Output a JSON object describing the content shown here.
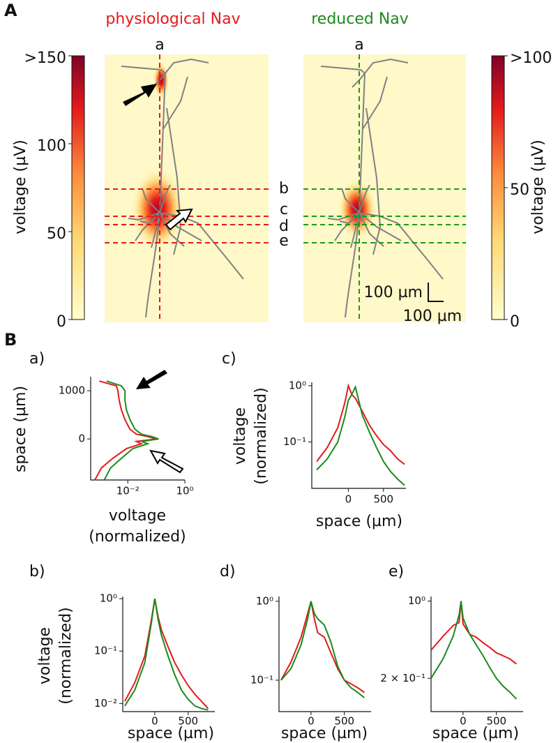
{
  "panel_labels": [
    "A",
    "B"
  ],
  "chart_data": [
    {
      "type": "heatmap",
      "title": "physiological Nav",
      "title_color": "#e31a1c",
      "line_color": "#e31a1c",
      "colorbar_label": "voltage (µV)",
      "clim": [
        0,
        150
      ],
      "cticks": [
        0,
        50,
        100,
        {
          "value": 150,
          "label": ">150"
        }
      ],
      "cut_labels": [
        "a",
        "b",
        "c",
        "d",
        "e"
      ]
    },
    {
      "type": "heatmap",
      "title": "reduced Nav",
      "title_color": "#1b8a1b",
      "line_color": "#1b9a1b",
      "colorbar_label": "voltage (µV)",
      "clim": [
        0,
        100
      ],
      "cticks": [
        0,
        50,
        {
          "value": 100,
          "label": ">100"
        }
      ],
      "cut_labels": [
        "a"
      ],
      "scale_bar": [
        "100 µm",
        "100 µm"
      ]
    },
    {
      "type": "line",
      "title": "a)",
      "xlabel": [
        "voltage",
        "(normalized)"
      ],
      "ylabel": "space (µm)",
      "xscale": "log",
      "xlim": [
        0.0005,
        1
      ],
      "xticks": [
        {
          "value": 0.01,
          "label": "10⁻²"
        },
        {
          "value": 1,
          "label": "10⁰"
        }
      ],
      "ylim": [
        -850,
        1290
      ],
      "yticks": [
        0,
        1000
      ],
      "y": [
        -850,
        -600,
        -400,
        -200,
        -100,
        -50,
        0,
        50,
        100,
        200,
        400,
        600,
        800,
        1000,
        1100,
        1200
      ],
      "series": [
        {
          "name": "physiological Nav",
          "color": "#e31a1c",
          "values": [
            0.0007,
            0.0012,
            0.003,
            0.009,
            0.03,
            0.02,
            0.1,
            0.05,
            0.02,
            0.012,
            0.008,
            0.006,
            0.005,
            0.0045,
            0.004,
            0.001
          ]
        },
        {
          "name": "reduced Nav",
          "color": "#1b8a1b",
          "values": [
            0.0015,
            0.0025,
            0.006,
            0.015,
            0.05,
            0.03,
            0.12,
            0.07,
            0.03,
            0.018,
            0.012,
            0.009,
            0.008,
            0.008,
            0.006,
            0.0018
          ]
        }
      ]
    },
    {
      "type": "line",
      "title": "c)",
      "xlabel": "space (µm)",
      "ylabel": [
        "voltage",
        "(normalized)"
      ],
      "yscale": "log",
      "xlim": [
        -520,
        820
      ],
      "xticks": [
        0,
        500
      ],
      "ylim": [
        0.015,
        1.15
      ],
      "yticks": [
        {
          "value": 0.1,
          "label": "10⁻¹"
        },
        {
          "value": 1,
          "label": "10⁰"
        }
      ],
      "x": [
        -450,
        -300,
        -150,
        -50,
        0,
        50,
        100,
        200,
        300,
        400,
        500,
        600,
        700,
        800
      ],
      "series": [
        {
          "name": "physiological Nav",
          "color": "#e31a1c",
          "values": [
            0.045,
            0.08,
            0.18,
            0.5,
            1.0,
            0.7,
            0.6,
            0.35,
            0.2,
            0.13,
            0.09,
            0.07,
            0.05,
            0.04
          ]
        },
        {
          "name": "reduced Nav",
          "color": "#1b8a1b",
          "values": [
            0.032,
            0.05,
            0.1,
            0.28,
            0.55,
            0.7,
            0.95,
            0.3,
            0.15,
            0.08,
            0.045,
            0.03,
            0.022,
            0.017
          ]
        }
      ]
    },
    {
      "type": "line",
      "title": "b)",
      "xlabel": "space (µm)",
      "ylabel": [
        "voltage",
        "(normalized)"
      ],
      "yscale": "log",
      "xlim": [
        -480,
        900
      ],
      "xticks": [
        0,
        500
      ],
      "ylim": [
        0.007,
        1.1
      ],
      "yticks": [
        {
          "value": 0.01,
          "label": "10⁻²"
        },
        {
          "value": 0.1,
          "label": "10⁻¹"
        },
        {
          "value": 1,
          "label": "10⁰"
        }
      ],
      "x": [
        -450,
        -300,
        -150,
        -50,
        0,
        50,
        100,
        200,
        300,
        400,
        500,
        600,
        700,
        800
      ],
      "series": [
        {
          "name": "physiological Nav",
          "color": "#e31a1c",
          "values": [
            0.011,
            0.025,
            0.08,
            0.4,
            1.0,
            0.45,
            0.25,
            0.12,
            0.06,
            0.035,
            0.022,
            0.015,
            0.011,
            0.008
          ]
        },
        {
          "name": "reduced Nav",
          "color": "#1b8a1b",
          "values": [
            0.009,
            0.018,
            0.06,
            0.35,
            1.0,
            0.4,
            0.2,
            0.08,
            0.035,
            0.018,
            0.012,
            0.009,
            0.008,
            0.0075
          ]
        }
      ]
    },
    {
      "type": "line",
      "title": "d)",
      "xlabel": "space (µm)",
      "yscale": "log",
      "xlim": [
        -480,
        900
      ],
      "xticks": [
        0,
        500
      ],
      "ylim": [
        0.04,
        1.15
      ],
      "yticks": [
        {
          "value": 0.1,
          "label": "10⁻¹"
        },
        {
          "value": 1,
          "label": "10⁰"
        }
      ],
      "x": [
        -450,
        -300,
        -150,
        -50,
        0,
        50,
        100,
        200,
        300,
        400,
        500,
        600,
        700,
        800
      ],
      "series": [
        {
          "name": "physiological Nav",
          "color": "#e31a1c",
          "values": [
            0.1,
            0.17,
            0.35,
            0.7,
            1.0,
            0.6,
            0.4,
            0.35,
            0.22,
            0.14,
            0.1,
            0.09,
            0.08,
            0.07
          ]
        },
        {
          "name": "reduced Nav",
          "color": "#1b8a1b",
          "values": [
            0.1,
            0.14,
            0.28,
            0.6,
            1.0,
            0.7,
            0.6,
            0.5,
            0.3,
            0.15,
            0.1,
            0.08,
            0.07,
            0.06
          ]
        }
      ]
    },
    {
      "type": "line",
      "title": "e)",
      "xlabel": "space (µm)",
      "yscale": "log",
      "xlim": [
        -480,
        900
      ],
      "xticks": [
        0,
        500
      ],
      "ylim": [
        0.1,
        1.1
      ],
      "yticks": [
        {
          "value": 0.2,
          "label": "2 × 10⁻¹"
        },
        {
          "value": 1,
          "label": "10⁰"
        }
      ],
      "x": [
        -480,
        -300,
        -150,
        -60,
        -30,
        0,
        100,
        200,
        300,
        400,
        500,
        600,
        700,
        800
      ],
      "series": [
        {
          "name": "physiological Nav",
          "color": "#e31a1c",
          "values": [
            0.36,
            0.48,
            0.6,
            0.64,
            1.0,
            0.62,
            0.5,
            0.47,
            0.42,
            0.38,
            0.34,
            0.32,
            0.3,
            0.27
          ]
        },
        {
          "name": "reduced Nav",
          "color": "#1b8a1b",
          "values": [
            0.2,
            0.3,
            0.48,
            0.75,
            1.0,
            0.7,
            0.5,
            0.4,
            0.32,
            0.25,
            0.2,
            0.17,
            0.15,
            0.13
          ]
        }
      ]
    }
  ]
}
